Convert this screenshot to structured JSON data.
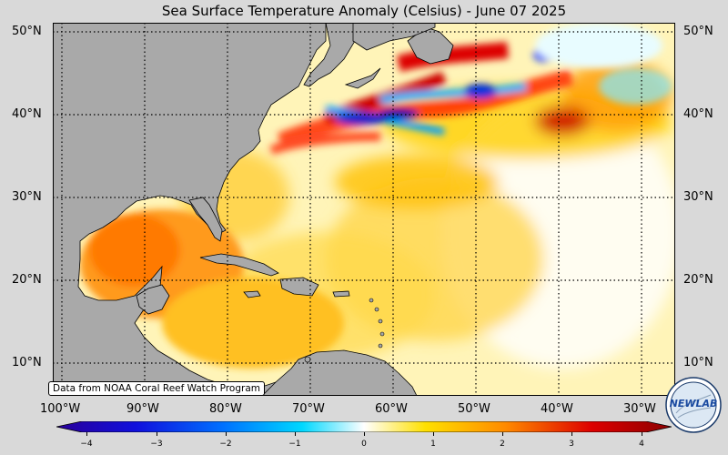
{
  "title": "Sea Surface Temperature Anomaly (Celsius) - June 07 2025",
  "latitude_labels": [
    "50°N",
    "40°N",
    "30°N",
    "20°N",
    "10°N"
  ],
  "longitude_labels": [
    "100°W",
    "90°W",
    "80°W",
    "70°W",
    "60°W",
    "50°W",
    "40°W",
    "30°W"
  ],
  "source_note": "Data from NOAA Coral Reef Watch Program",
  "colorbar": {
    "min": -4,
    "max": 4,
    "tick_labels": [
      "−4",
      "−3",
      "−2",
      "−1",
      "0",
      "1",
      "2",
      "3",
      "4"
    ],
    "colors": [
      "#2a0099",
      "#0050ff",
      "#00c8ff",
      "#ffffff",
      "#ffe000",
      "#ff7000",
      "#dd0000",
      "#8b0000"
    ]
  },
  "logo_text": "NEWLAB",
  "land_color": "#a9a9a9",
  "gridline_style": "dotted"
}
